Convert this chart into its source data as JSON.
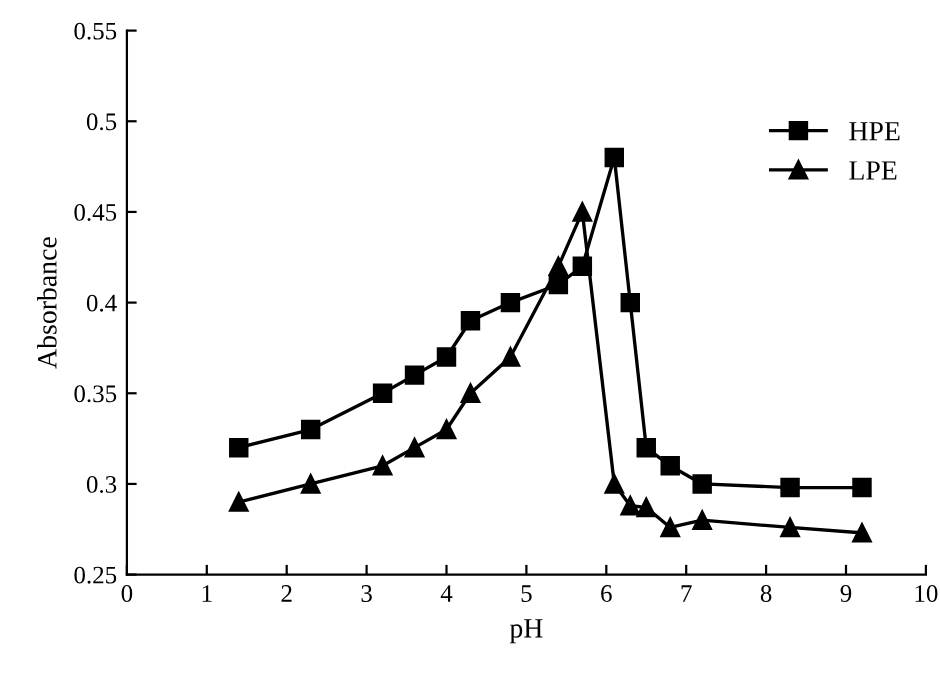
{
  "chart_data": {
    "type": "line",
    "xlabel": "pH",
    "ylabel": "Absorbance",
    "xlim": [
      0,
      10
    ],
    "xticks": [
      0,
      1,
      2,
      3,
      4,
      5,
      6,
      7,
      8,
      9,
      10
    ],
    "ylim": [
      0.25,
      0.55
    ],
    "yticks": [
      0.25,
      0.3,
      0.35,
      0.4,
      0.45,
      0.5,
      0.55
    ],
    "grid": false,
    "legend": "top right",
    "line_style": "solid",
    "series": [
      {
        "name": "HPE",
        "color": "#000000",
        "marker": "square",
        "x": [
          1.4,
          2.3,
          3.2,
          3.6,
          4.0,
          4.3,
          4.8,
          5.4,
          5.7,
          6.1,
          6.3,
          6.5,
          6.8,
          7.2,
          8.3,
          9.2
        ],
        "values": [
          0.32,
          0.33,
          0.35,
          0.36,
          0.37,
          0.39,
          0.4,
          0.41,
          0.42,
          0.48,
          0.4,
          0.32,
          0.31,
          0.3,
          0.298,
          0.298
        ]
      },
      {
        "name": "LPE",
        "color": "#000000",
        "marker": "triangle",
        "x": [
          1.4,
          2.3,
          3.2,
          3.6,
          4.0,
          4.3,
          4.8,
          5.4,
          5.7,
          6.1,
          6.3,
          6.5,
          6.8,
          7.2,
          8.3,
          9.2
        ],
        "values": [
          0.29,
          0.3,
          0.31,
          0.32,
          0.33,
          0.35,
          0.37,
          0.42,
          0.45,
          0.3,
          0.288,
          0.287,
          0.276,
          0.28,
          0.276,
          0.273
        ]
      }
    ]
  }
}
